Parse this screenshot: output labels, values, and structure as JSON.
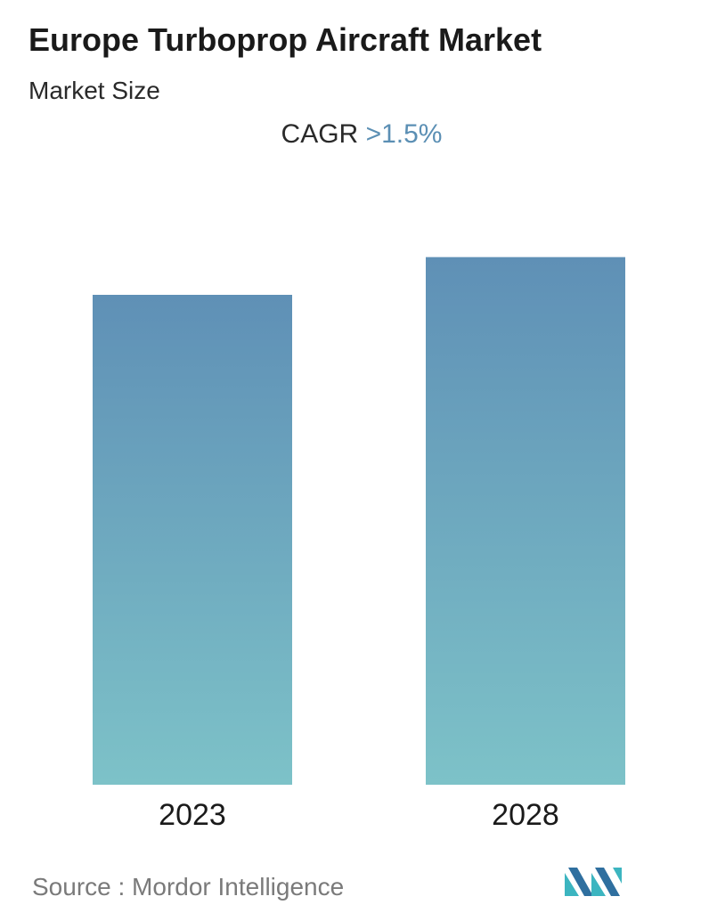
{
  "header": {
    "title": "Europe Turboprop Aircraft Market",
    "subtitle": "Market Size"
  },
  "cagr": {
    "label": "CAGR",
    "value": ">1.5%"
  },
  "footer": {
    "source": "Source :  Mordor Intelligence"
  },
  "colors": {
    "bar_top": "#5f90b6",
    "bar_bottom": "#7dc2c8",
    "accent": "#5b8fb4",
    "logo_primary": "#2f6f9f",
    "logo_secondary": "#3cb5c0"
  },
  "chart_data": {
    "type": "bar",
    "categories": [
      "2023",
      "2028"
    ],
    "values": [
      100,
      107.7
    ],
    "ylim": [
      0,
      120
    ],
    "title": "",
    "xlabel": "",
    "ylabel": "",
    "grid": false,
    "axis_values_shown": false
  }
}
